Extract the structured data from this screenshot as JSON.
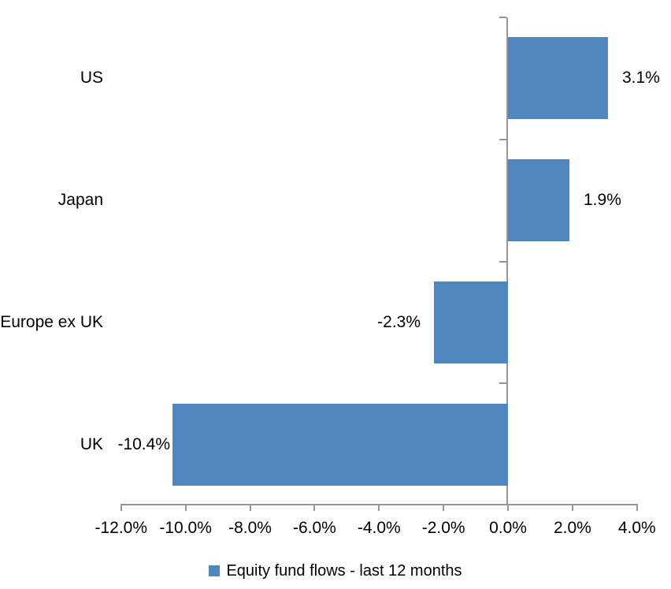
{
  "chart_data": {
    "type": "bar",
    "orientation": "horizontal",
    "title": "",
    "categories": [
      "US",
      "Japan",
      "Europe ex UK",
      "UK"
    ],
    "values": [
      3.1,
      1.9,
      -2.3,
      -10.4
    ],
    "value_labels": [
      "3.1%",
      "1.9%",
      "-2.3%",
      "-10.4%"
    ],
    "x_tick_values": [
      -12,
      -10,
      -8,
      -6,
      -4,
      -2,
      0,
      2,
      4
    ],
    "x_tick_labels": [
      "-12.0%",
      "-10.0%",
      "-8.0%",
      "-6.0%",
      "-4.0%",
      "-2.0%",
      "0.0%",
      "2.0%",
      "4.0%"
    ],
    "xlim": [
      -12,
      4
    ],
    "grid": false,
    "legend_position": "bottom-center",
    "legend_entries": [
      "Equity fund flows - last 12 months"
    ],
    "colors": {
      "bar": "#4e86bd",
      "axis": "#969696",
      "text": "#000000",
      "background": "#ffffff"
    }
  },
  "legend": {
    "label": "Equity fund flows - last 12 months"
  }
}
